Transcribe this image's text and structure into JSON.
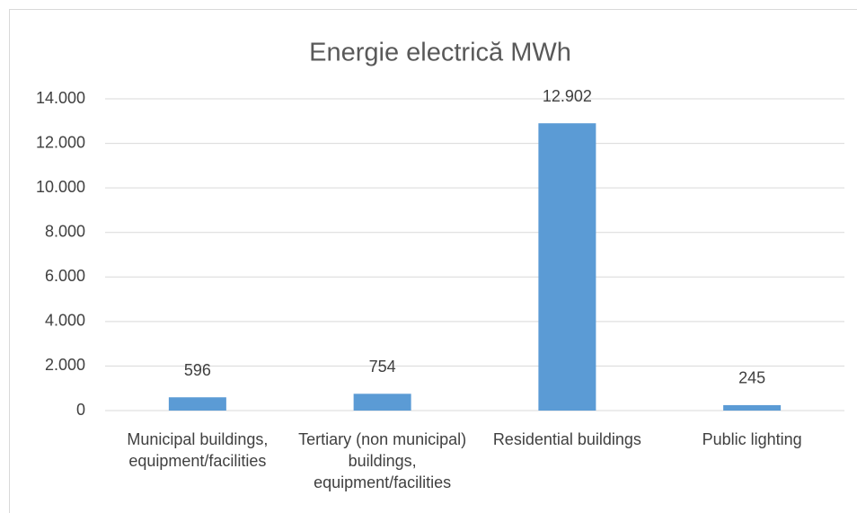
{
  "chart_data": {
    "type": "bar",
    "title": "Energie electrică MWh",
    "categories": [
      "Municipal buildings, equipment/facilities",
      "Tertiary (non municipal) buildings, equipment/facilities",
      "Residential buildings",
      "Public lighting"
    ],
    "values": [
      596,
      754,
      12902,
      245
    ],
    "value_labels": [
      "596",
      "754",
      "12.902",
      "245"
    ],
    "color": "#5b9bd5",
    "ylim": [
      0,
      14000
    ],
    "yticks": [
      0,
      {
        "value": 2000,
        "label": "2.000"
      },
      {
        "value": 4000,
        "label": "4.000"
      },
      {
        "value": 6000,
        "label": "6.000"
      },
      {
        "value": 8000,
        "label": "8.000"
      },
      {
        "value": 10000,
        "label": "10.000"
      },
      {
        "value": 12000,
        "label": "12.000"
      },
      {
        "value": 14000,
        "label": "14.000"
      }
    ],
    "grid": true
  }
}
